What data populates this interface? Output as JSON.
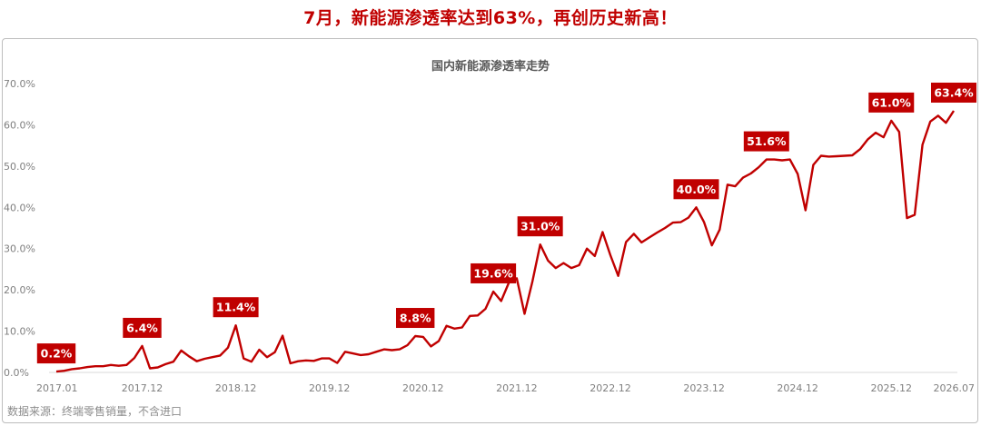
{
  "headline": "7月，新能源渗透率达到63%，再创历史新高！",
  "source": "数据来源：终端零售销量，不含进口",
  "colors": {
    "line": "#c00000",
    "label_bg": "#c00000",
    "label_text": "#ffffff",
    "axis_text": "#7f7f7f"
  },
  "chart_data": {
    "type": "line",
    "title": "国内新能源渗透率走势",
    "xlabel": "",
    "ylabel": "",
    "ylim": [
      0,
      70
    ],
    "y_ticks": [
      "0.0%",
      "10.0%",
      "20.0%",
      "30.0%",
      "40.0%",
      "50.0%",
      "60.0%",
      "70.0%"
    ],
    "x_ticks": [
      "2017.01",
      "2017.12",
      "2018.12",
      "2019.12",
      "2020.12",
      "2021.12",
      "2022.12",
      "2023.12",
      "2024.12",
      "2025.12",
      "2026.07"
    ],
    "grid": false,
    "legend": "none",
    "series": [
      {
        "name": "",
        "values": [
          0.2,
          0.4,
          0.8,
          1.0,
          1.3,
          1.5,
          1.5,
          1.8,
          1.6,
          1.8,
          3.5,
          6.4,
          1.0,
          1.2,
          2.0,
          2.6,
          5.3,
          3.9,
          2.7,
          3.3,
          3.7,
          4.1,
          6.0,
          11.4,
          3.4,
          2.6,
          5.5,
          3.7,
          4.9,
          8.9,
          2.2,
          2.7,
          2.9,
          2.8,
          3.4,
          3.4,
          2.3,
          5.0,
          4.6,
          4.2,
          4.4,
          5.0,
          5.6,
          5.4,
          5.6,
          6.6,
          8.8,
          8.6,
          6.3,
          7.6,
          11.3,
          10.6,
          10.9,
          13.7,
          13.8,
          15.4,
          19.6,
          17.3,
          21.8,
          22.8,
          14.2,
          22.0,
          31.0,
          27.1,
          25.3,
          26.5,
          25.3,
          26.0,
          30.0,
          28.2,
          34.0,
          28.4,
          23.4,
          31.6,
          33.6,
          31.5,
          32.7,
          33.9,
          35.0,
          36.3,
          36.4,
          37.5,
          40.0,
          36.4,
          30.8,
          34.6,
          45.5,
          45.1,
          47.2,
          48.2,
          49.7,
          51.6,
          51.6,
          51.4,
          51.6,
          48.1,
          39.3,
          50.3,
          52.5,
          52.3,
          52.4,
          52.5,
          52.6,
          54.1,
          56.5,
          58.1,
          57.0,
          61.0,
          58.3,
          37.4,
          38.2,
          55.2,
          60.8,
          62.2,
          60.5,
          63.4
        ]
      }
    ],
    "annotations": [
      {
        "index": 0,
        "text": "0.2%"
      },
      {
        "index": 11,
        "text": "6.4%"
      },
      {
        "index": 23,
        "text": "11.4%"
      },
      {
        "index": 46,
        "text": "8.8%"
      },
      {
        "index": 56,
        "text": "19.6%"
      },
      {
        "index": 62,
        "text": "31.0%"
      },
      {
        "index": 82,
        "text": "40.0%"
      },
      {
        "index": 91,
        "text": "51.6%"
      },
      {
        "index": 107,
        "text": "61.0%"
      },
      {
        "index": 115,
        "text": "63.4%"
      }
    ]
  }
}
